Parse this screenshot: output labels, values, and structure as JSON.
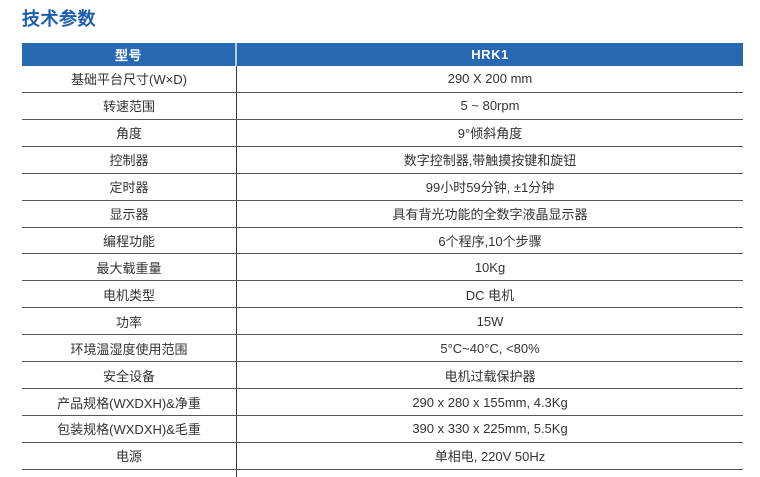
{
  "page": {
    "title": "技术参数"
  },
  "colors": {
    "header_bg": "#2768b2",
    "header_text": "#ffffff",
    "title_text": "#1d5fae",
    "row_border": "#565656",
    "column_divider": "#3a3a3a",
    "body_text": "#333333"
  },
  "table": {
    "header": {
      "model_label": "型号",
      "model_value": "HRK1"
    },
    "rows": [
      {
        "label": "基础平台尺寸(W×D)",
        "value": "290 X 200 mm"
      },
      {
        "label": "转速范围",
        "value": "5 ~ 80rpm"
      },
      {
        "label": "角度",
        "value": "9°倾斜角度"
      },
      {
        "label": "控制器",
        "value": "数字控制器,带触摸按键和旋钮"
      },
      {
        "label": "定时器",
        "value": "99小时59分钟, ±1分钟"
      },
      {
        "label": "显示器",
        "value": "具有背光功能的全数字液晶显示器"
      },
      {
        "label": "编程功能",
        "value": "6个程序,10个步骤"
      },
      {
        "label": "最大载重量",
        "value": "10Kg"
      },
      {
        "label": "电机类型",
        "value": "DC 电机"
      },
      {
        "label": "功率",
        "value": "15W"
      },
      {
        "label": "环境温湿度使用范围",
        "value": "5°C~40°C, <80%"
      },
      {
        "label": "安全设备",
        "value": "电机过载保护器"
      },
      {
        "label": "产品规格(WXDXH)&净重",
        "value": "290 x 280 x 155mm, 4.3Kg"
      },
      {
        "label": "包装规格(WXDXH)&毛重",
        "value": "390 x 330 x 225mm, 5.5Kg"
      },
      {
        "label": "电源",
        "value": "单相电, 220V 50Hz"
      }
    ]
  }
}
